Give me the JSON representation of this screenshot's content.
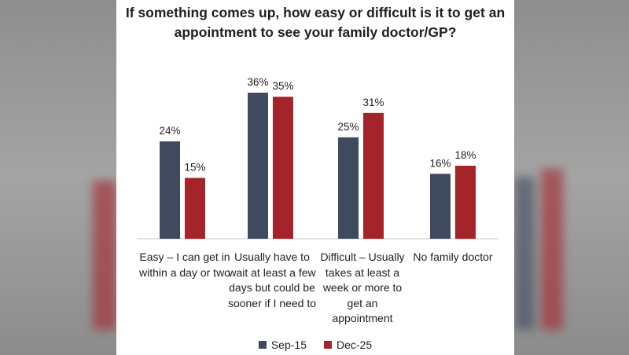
{
  "colors": {
    "sep15": "#3f4a5e",
    "dec25": "#a4242a",
    "axis": "#c8c8c8",
    "text": "#1f1f1f"
  },
  "chart_data": {
    "type": "bar",
    "title": "If something comes up, how easy or difficult is it to get an appointment to see your family doctor/GP?",
    "categories": [
      "Easy – I can get in within a day or two",
      "Usually have to wait at least a few days but could be sooner if I need to",
      "Difficult – Usually takes at least a week or more to get an appointment",
      "No family doctor"
    ],
    "series": [
      {
        "name": "Sep-15",
        "values": [
          24,
          36,
          25,
          16
        ],
        "labels": [
          "24%",
          "36%",
          "25%",
          "16%"
        ],
        "color": "#3f4a5e"
      },
      {
        "name": "Dec-25",
        "values": [
          15,
          35,
          31,
          18
        ],
        "labels": [
          "15%",
          "35%",
          "31%",
          "18%"
        ],
        "color": "#a4242a"
      }
    ],
    "ylim": [
      0,
      36
    ],
    "grid": false,
    "legend": "bottom-center"
  }
}
